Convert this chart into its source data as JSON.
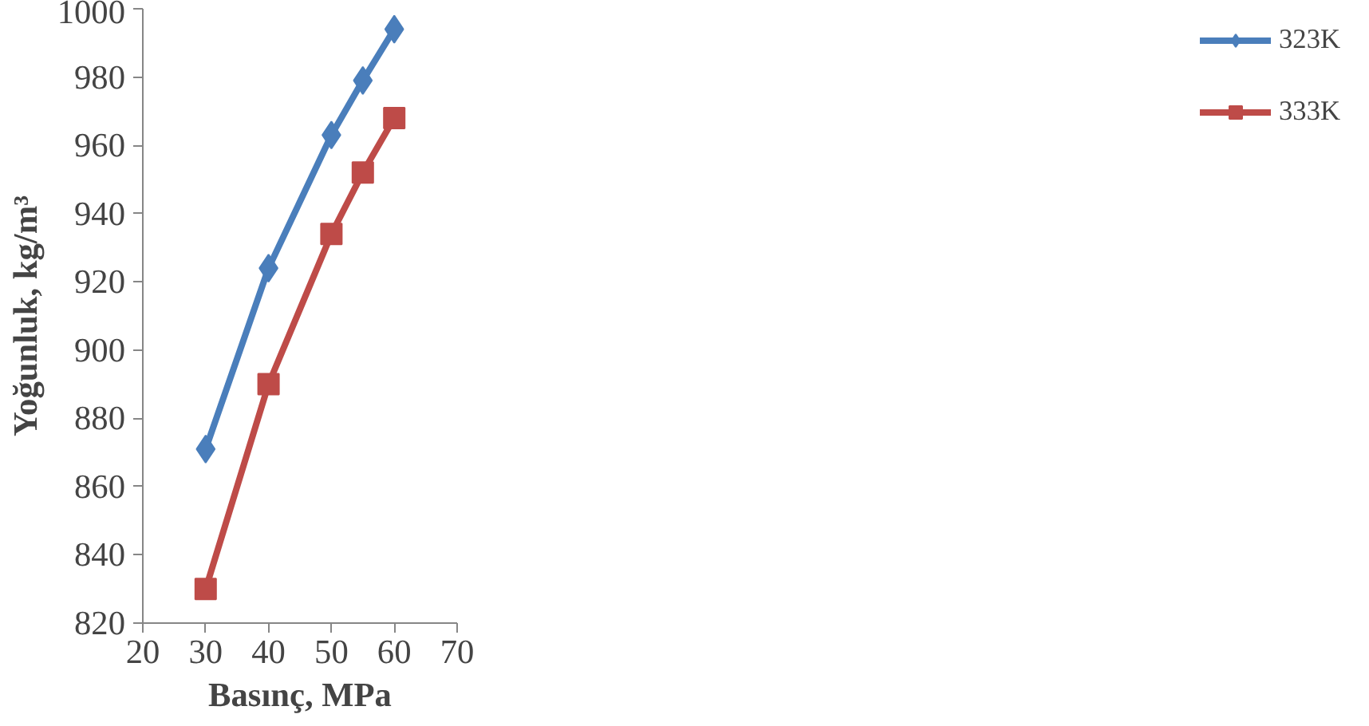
{
  "chart_data": {
    "type": "line",
    "xlabel": "Basınç, MPa",
    "ylabel": "Yoğunluk, kg/m³",
    "x": [
      30,
      40,
      50,
      55,
      60
    ],
    "series": [
      {
        "name": "323K",
        "color": "#4a7ebb",
        "marker": "diamond",
        "values": [
          871,
          924,
          963,
          979,
          994
        ]
      },
      {
        "name": "333K",
        "color": "#be4b48",
        "marker": "square",
        "values": [
          830,
          890,
          934,
          952,
          968
        ]
      }
    ],
    "xlim": [
      20,
      70
    ],
    "xticks": [
      20,
      30,
      40,
      50,
      60,
      70
    ],
    "ylim": [
      820,
      1000
    ],
    "yticks": [
      820,
      840,
      860,
      880,
      900,
      920,
      940,
      960,
      980,
      1000
    ],
    "grid": false,
    "legend": "right",
    "line_style": "solid"
  }
}
